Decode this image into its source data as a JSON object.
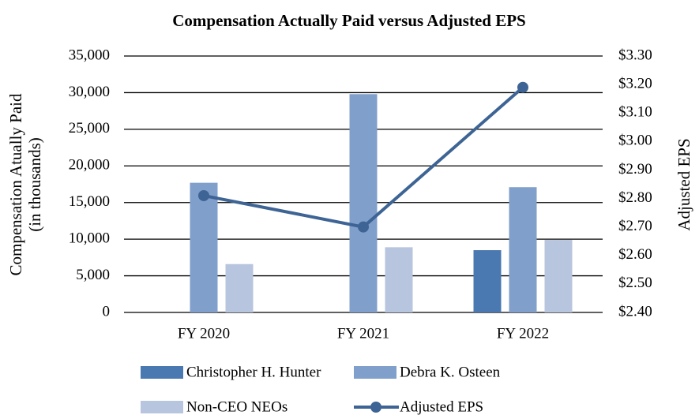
{
  "chart_data": {
    "type": "bar",
    "title": "Compensation Actually Paid versus Adjusted EPS",
    "ylabel": [
      "Compensation Atually Paid",
      "(in thousands)"
    ],
    "y2label": "Adjusted EPS",
    "categories": [
      "FY 2020",
      "FY 2021",
      "FY 2022"
    ],
    "series": [
      {
        "name": "Christopher H. Hunter",
        "color": "#4a78b0",
        "values": [
          null,
          null,
          8500
        ]
      },
      {
        "name": "Debra K. Osteen",
        "color": "#819fcb",
        "values": [
          17700,
          29800,
          17100
        ]
      },
      {
        "name": "Non-CEO NEOs",
        "color": "#b8c5de",
        "values": [
          6600,
          8900,
          9900
        ]
      },
      {
        "name": "Adjusted EPS",
        "color": "#3d6494",
        "type": "line",
        "axis": "y2",
        "values": [
          2.81,
          2.7,
          3.19
        ]
      }
    ],
    "ylim": [
      0,
      35000
    ],
    "yticks": [
      0,
      {
        "value": 5000,
        "label": "5,000"
      },
      {
        "value": 10000,
        "label": "10,000"
      },
      {
        "value": 15000,
        "label": "15,000"
      },
      {
        "value": 20000,
        "label": "20,000"
      },
      {
        "value": 25000,
        "label": "25,000"
      },
      {
        "value": 30000,
        "label": "30,000"
      },
      {
        "value": 35000,
        "label": "35,000"
      }
    ],
    "y2lim": [
      2.4,
      3.3
    ],
    "y2ticks": [
      {
        "value": 2.4,
        "label": "$2.40"
      },
      {
        "value": 2.5,
        "label": "$2.50"
      },
      {
        "value": 2.6,
        "label": "$2.60"
      },
      {
        "value": 2.7,
        "label": "$2.70"
      },
      {
        "value": 2.8,
        "label": "$2.80"
      },
      {
        "value": 2.9,
        "label": "$2.90"
      },
      {
        "value": 3.0,
        "label": "$3.00"
      },
      {
        "value": 3.1,
        "label": "$3.10"
      },
      {
        "value": 3.2,
        "label": "$3.20"
      },
      {
        "value": 3.3,
        "label": "$3.30"
      }
    ],
    "grid": true,
    "legend": "bottom"
  }
}
